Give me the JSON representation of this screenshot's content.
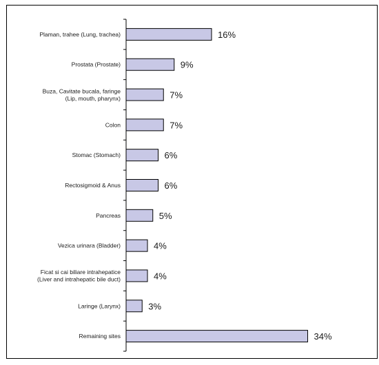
{
  "chart_data": {
    "type": "bar",
    "orientation": "horizontal",
    "title": "",
    "xlabel": "",
    "ylabel": "",
    "categories": [
      [
        "Plaman, trahee (Lung, trachea)"
      ],
      [
        "Prostata (Prostate)"
      ],
      [
        "Buza, Cavitate bucala, faringe",
        "(Lip, mouth, pharynx)"
      ],
      [
        "Colon"
      ],
      [
        "Stomac (Stomach)"
      ],
      [
        "Rectosigmoid & Anus"
      ],
      [
        "Pancreas"
      ],
      [
        "Vezica urinara (Bladder)"
      ],
      [
        "Ficat si cai biliare intrahepatice",
        "(Liver and intrahepatic bile duct)"
      ],
      [
        "Laringe (Larynx)"
      ],
      [
        "Remaining sites"
      ]
    ],
    "values": [
      16,
      9,
      7,
      7,
      6,
      6,
      5,
      4,
      4,
      3,
      34
    ],
    "value_labels": [
      "16%",
      "9%",
      "7%",
      "7%",
      "6%",
      "6%",
      "5%",
      "4%",
      "4%",
      "3%",
      "34%"
    ],
    "xlim": [
      0,
      40
    ],
    "grid": false,
    "legend": "none",
    "colors": {
      "bar_fill": "#c8c8e6",
      "bar_stroke": "#000000",
      "axis": "#000000"
    }
  }
}
